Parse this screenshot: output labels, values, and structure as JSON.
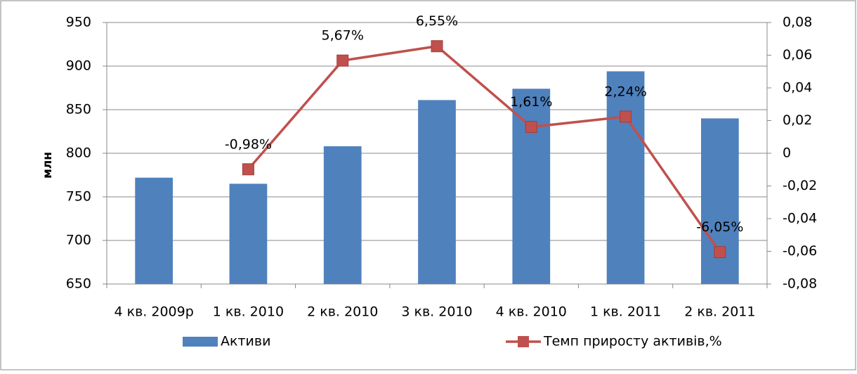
{
  "chart_data": {
    "type": "bar",
    "categories": [
      "4 кв. 2009р",
      "1 кв. 2010",
      "2 кв. 2010",
      "3 кв. 2010",
      "4 кв. 2010",
      "1 кв. 2011",
      "2 кв. 2011"
    ],
    "y_label": "млн",
    "series": [
      {
        "name": "Активи",
        "type": "bar",
        "color": "#4f81bd",
        "values": [
          772,
          765,
          808,
          861,
          874,
          894,
          840
        ]
      },
      {
        "name": "Темп приросту активів,%",
        "type": "line",
        "axis": "y2",
        "color": "#c0504d",
        "values": [
          null,
          -0.0098,
          0.0567,
          0.0655,
          0.0161,
          0.0224,
          -0.0605
        ],
        "value_labels": [
          null,
          "-0,98%",
          "5,67%",
          "6,55%",
          "1,61%",
          "2,24%",
          "-6,05%"
        ]
      }
    ],
    "ylim": [
      650,
      950
    ],
    "yticks": [
      650,
      700,
      750,
      800,
      850,
      900,
      950
    ],
    "y2lim": [
      -0.08,
      0.08
    ],
    "y2ticks": [
      {
        "value": -0.08,
        "label": "-0,08"
      },
      {
        "value": -0.06,
        "label": "-0,06"
      },
      {
        "value": -0.04,
        "label": "-0,04"
      },
      {
        "value": -0.02,
        "label": "-0,02"
      },
      0,
      {
        "value": 0.02,
        "label": "0,02"
      },
      {
        "value": 0.04,
        "label": "0,04"
      },
      {
        "value": 0.06,
        "label": "0,06"
      },
      {
        "value": 0.08,
        "label": "0,08"
      }
    ],
    "grid": true,
    "legend": "bottom"
  }
}
